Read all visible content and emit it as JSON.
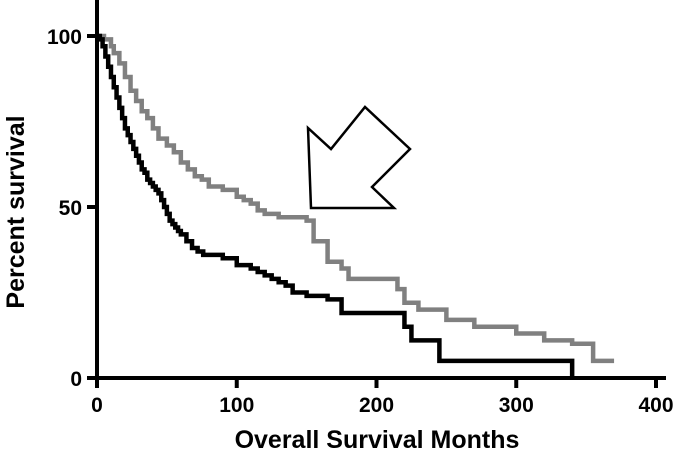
{
  "chart_data": {
    "type": "line",
    "step": true,
    "title": "",
    "xlabel": "Overall Survival Months",
    "ylabel": "Percent survival",
    "xlim": [
      0,
      400
    ],
    "ylim": [
      0,
      100
    ],
    "xticks": [
      0,
      100,
      200,
      300,
      400
    ],
    "yticks": [
      0,
      50,
      100
    ],
    "grid": false,
    "series": [
      {
        "color": "#000000",
        "x": [
          0,
          2,
          4,
          6,
          8,
          10,
          12,
          14,
          16,
          18,
          20,
          22,
          24,
          26,
          28,
          30,
          32,
          34,
          36,
          38,
          40,
          42,
          44,
          46,
          48,
          50,
          52,
          54,
          56,
          58,
          60,
          64,
          68,
          72,
          76,
          80,
          90,
          100,
          110,
          115,
          120,
          125,
          130,
          135,
          140,
          150,
          165,
          175,
          200,
          220,
          225,
          245,
          300,
          330,
          340
        ],
        "y": [
          100,
          99,
          97,
          94,
          91,
          88,
          85,
          82,
          79,
          76,
          73,
          71,
          69,
          67,
          65,
          63,
          61,
          60,
          58,
          57,
          56,
          55,
          54,
          52,
          50,
          48,
          46,
          45,
          44,
          43,
          42,
          40,
          38,
          37,
          36,
          36,
          35,
          33,
          32,
          31,
          30,
          29,
          28,
          27,
          25,
          24,
          23,
          19,
          19,
          15,
          11,
          5,
          5,
          5,
          0
        ]
      },
      {
        "color": "#808080",
        "x": [
          0,
          5,
          10,
          12,
          16,
          20,
          24,
          28,
          32,
          36,
          40,
          44,
          50,
          55,
          60,
          65,
          70,
          75,
          80,
          90,
          100,
          105,
          110,
          115,
          120,
          130,
          140,
          150,
          155,
          165,
          175,
          180,
          200,
          215,
          220,
          230,
          250,
          270,
          300,
          320,
          340,
          355,
          360,
          370
        ],
        "y": [
          100,
          99,
          97,
          95,
          92,
          88,
          84,
          81,
          78,
          76,
          73,
          70,
          68,
          66,
          63,
          61,
          59,
          58,
          56,
          55,
          53,
          52,
          51,
          49,
          48,
          47,
          47,
          46,
          40,
          34,
          32,
          29,
          29,
          26,
          22,
          20,
          17,
          15,
          13,
          11,
          10,
          5,
          5,
          5
        ]
      }
    ],
    "annotations": [
      {
        "type": "arrow",
        "style": "outline",
        "direction": "down-left"
      }
    ]
  }
}
